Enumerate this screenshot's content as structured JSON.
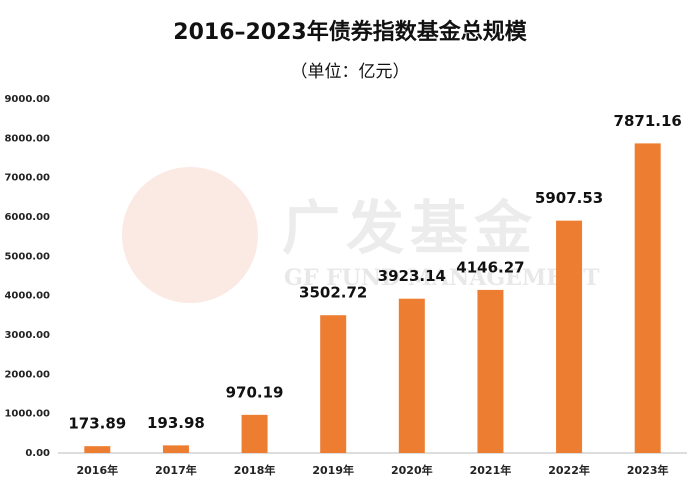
{
  "chart_data": {
    "type": "bar",
    "title": "2016–2023年债券指数基金总规模",
    "subtitle": "（单位：亿元）",
    "watermark": [
      "广发基金",
      "GF FUND MANAGEMENT"
    ],
    "categories": [
      "2016年",
      "2017年",
      "2018年",
      "2019年",
      "2020年",
      "2021年",
      "2022年",
      "2023年"
    ],
    "values": [
      173.89,
      193.98,
      970.19,
      3502.72,
      3923.14,
      4146.27,
      5907.53,
      7871.16
    ],
    "color": "#ed7d31",
    "ylim": [
      0,
      9000
    ],
    "yticks": [
      {
        "value": 0,
        "label": "0.00"
      },
      {
        "value": 1000,
        "label": "1000.00"
      },
      {
        "value": 2000,
        "label": "2000.00"
      },
      {
        "value": 3000,
        "label": "3000.00"
      },
      {
        "value": 4000,
        "label": "4000.00"
      },
      {
        "value": 5000,
        "label": "5000.00"
      },
      {
        "value": 6000,
        "label": "6000.00"
      },
      {
        "value": 7000,
        "label": "7000.00"
      },
      {
        "value": 8000,
        "label": "8000.00"
      },
      {
        "value": 9000,
        "label": "9000.00"
      }
    ],
    "grid": false
  }
}
